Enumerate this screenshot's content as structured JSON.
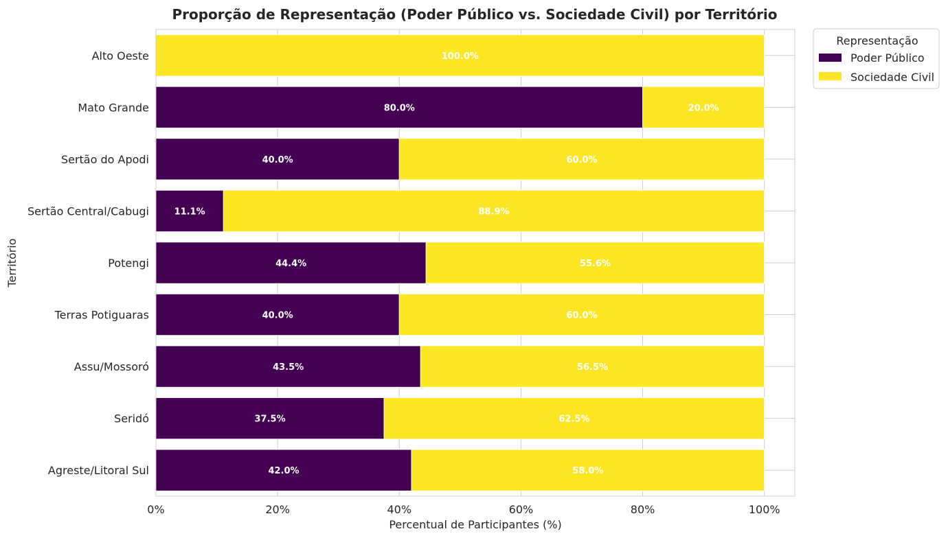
{
  "chart_data": {
    "type": "bar",
    "orientation": "horizontal",
    "stacked": true,
    "title": "Proporção de Representação (Poder Público vs. Sociedade Civil) por Território",
    "xlabel": "Percentual de Participantes (%)",
    "ylabel": "Território",
    "xlim": [
      0,
      105
    ],
    "x_ticks": [
      0,
      20,
      40,
      60,
      80,
      100
    ],
    "x_tick_labels": [
      "0%",
      "20%",
      "40%",
      "60%",
      "80%",
      "100%"
    ],
    "grid": true,
    "legend": {
      "title": "Representação",
      "position": "outside-top-right"
    },
    "categories": [
      "Alto Oeste",
      "Mato Grande",
      "Sertão do Apodi",
      "Sertão Central/Cabugi",
      "Potengi",
      "Terras Potiguaras",
      "Assu/Mossoró",
      "Seridó",
      "Agreste/Litoral Sul"
    ],
    "series": [
      {
        "name": "Poder Público",
        "color": "#440154",
        "values": [
          0,
          80.0,
          40.0,
          11.1,
          44.4,
          40.0,
          43.5,
          37.5,
          42.0
        ],
        "labels": [
          "",
          "80.0%",
          "40.0%",
          "11.1%",
          "44.4%",
          "40.0%",
          "43.5%",
          "37.5%",
          "42.0%"
        ]
      },
      {
        "name": "Sociedade Civil",
        "color": "#fde725",
        "values": [
          100.0,
          20.0,
          60.0,
          88.9,
          55.6,
          60.0,
          56.5,
          62.5,
          58.0
        ],
        "labels": [
          "100.0%",
          "20.0%",
          "60.0%",
          "88.9%",
          "55.6%",
          "60.0%",
          "56.5%",
          "62.5%",
          "58.0%"
        ]
      }
    ]
  }
}
